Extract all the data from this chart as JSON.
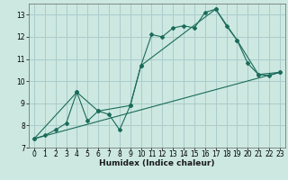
{
  "title": "",
  "xlabel": "Humidex (Indice chaleur)",
  "ylabel": "",
  "bg_color": "#cce8e0",
  "grid_color": "#aacccc",
  "line_color": "#1a6b5a",
  "marker_color": "#1a6b5a",
  "xlim": [
    -0.5,
    23.5
  ],
  "ylim": [
    7,
    13.5
  ],
  "yticks": [
    7,
    8,
    9,
    10,
    11,
    12,
    13
  ],
  "xticks": [
    0,
    1,
    2,
    3,
    4,
    5,
    6,
    7,
    8,
    9,
    10,
    11,
    12,
    13,
    14,
    15,
    16,
    17,
    18,
    19,
    20,
    21,
    22,
    23
  ],
  "line1_x": [
    0,
    1,
    2,
    3,
    4,
    5,
    6,
    7,
    8,
    9,
    10,
    11,
    12,
    13,
    14,
    15,
    16,
    17,
    18,
    19,
    20,
    21,
    22,
    23
  ],
  "line1_y": [
    7.4,
    7.55,
    7.8,
    8.1,
    9.5,
    8.2,
    8.65,
    8.5,
    7.8,
    8.9,
    10.7,
    12.1,
    12.0,
    12.4,
    12.5,
    12.4,
    13.1,
    13.25,
    12.5,
    11.85,
    10.8,
    10.3,
    10.25,
    10.4
  ],
  "line2_x": [
    0,
    4,
    6,
    9,
    10,
    17,
    19,
    21,
    23
  ],
  "line2_y": [
    7.4,
    9.5,
    8.65,
    8.9,
    10.7,
    13.25,
    11.85,
    10.3,
    10.4
  ],
  "line3_x": [
    0,
    23
  ],
  "line3_y": [
    7.4,
    10.4
  ],
  "font_size_label": 6.5,
  "font_size_tick": 5.5
}
